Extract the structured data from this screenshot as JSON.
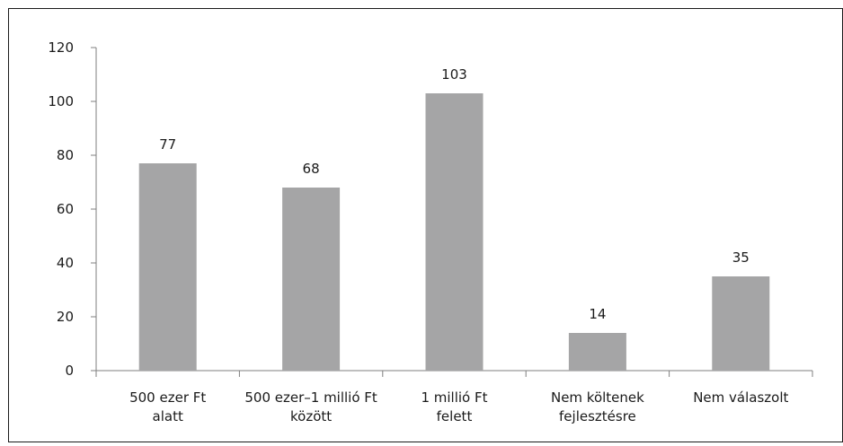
{
  "chart_data": {
    "type": "bar",
    "title": "",
    "xlabel": "",
    "ylabel": "",
    "ylim": [
      0,
      120
    ],
    "yticks": [
      0,
      20,
      40,
      60,
      80,
      100,
      120
    ],
    "grid": false,
    "categories": [
      [
        "500 ezer Ft",
        "alatt"
      ],
      [
        "500 ezer–1 millió Ft",
        "között"
      ],
      [
        "1 millió Ft",
        "felett"
      ],
      [
        "Nem költenek",
        "fejlesztésre"
      ],
      [
        "Nem válaszolt"
      ]
    ],
    "values": [
      77,
      68,
      103,
      14,
      35
    ],
    "data_labels": [
      "77",
      "68",
      "103",
      "14",
      "35"
    ],
    "colors": {
      "bar": "#a5a5a6",
      "axis": "#7f7f7f",
      "frame": "#1a1a1a"
    }
  }
}
